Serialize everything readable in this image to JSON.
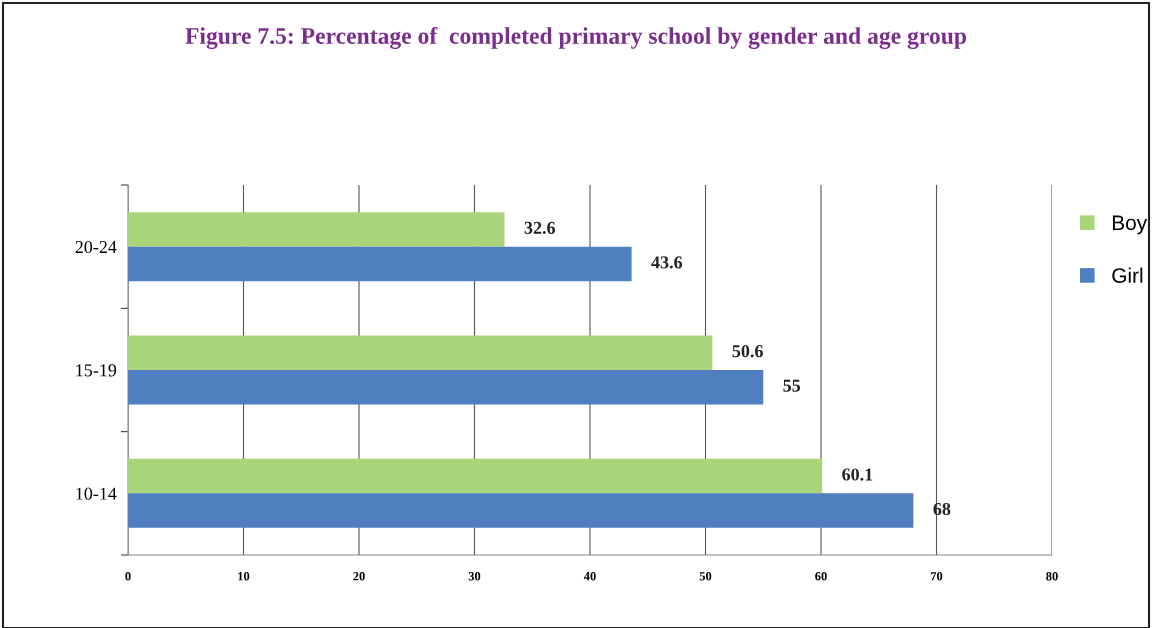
{
  "chart_data": {
    "type": "bar",
    "orientation": "horizontal",
    "title": "Figure 7.5: Percentage of  completed primary school by gender and age group",
    "categories": [
      "20-24",
      "15-19",
      "10-14"
    ],
    "series": [
      {
        "name": "Boy",
        "color": "#a9d47a",
        "values": [
          32.6,
          50.6,
          60.1
        ]
      },
      {
        "name": "Girl",
        "color": "#4f7ec1",
        "values": [
          43.6,
          55,
          68
        ]
      }
    ],
    "xlim": [
      0,
      80
    ],
    "xticks": [
      0,
      10,
      20,
      30,
      40,
      50,
      60,
      70,
      80
    ],
    "grid": "x",
    "legend": "right",
    "data_labels": true
  }
}
